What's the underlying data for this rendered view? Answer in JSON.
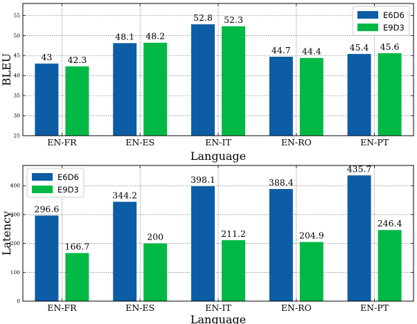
{
  "colors": {
    "E6D6": "#0C5DA5",
    "E9D3": "#00B945"
  },
  "chart_data": [
    {
      "type": "bar",
      "title": "",
      "xlabel": "Language",
      "ylabel": "BLEU",
      "categories": [
        "EN-FR",
        "EN-ES",
        "EN-IT",
        "EN-RO",
        "EN-PT"
      ],
      "series": [
        {
          "name": "E6D6",
          "values": [
            43,
            48.1,
            52.8,
            44.7,
            45.4
          ]
        },
        {
          "name": "E9D3",
          "values": [
            42.3,
            48.2,
            52.3,
            44.4,
            45.6
          ]
        }
      ],
      "ylim": [
        25,
        58
      ],
      "yticks": [
        25,
        30,
        35,
        40,
        45,
        50,
        55
      ],
      "grid": true,
      "legend": "top-right"
    },
    {
      "type": "bar",
      "title": "",
      "xlabel": "Language",
      "ylabel": "Latency",
      "categories": [
        "EN-FR",
        "EN-ES",
        "EN-IT",
        "EN-RO",
        "EN-PT"
      ],
      "series": [
        {
          "name": "E6D6",
          "values": [
            296.6,
            344.2,
            398.1,
            388.4,
            435.7
          ]
        },
        {
          "name": "E9D3",
          "values": [
            166.7,
            200,
            211.2,
            204.9,
            246.4
          ]
        }
      ],
      "ylim": [
        0,
        470
      ],
      "yticks": [
        0,
        100,
        200,
        300,
        400
      ],
      "grid": true,
      "legend": "top-left"
    }
  ]
}
